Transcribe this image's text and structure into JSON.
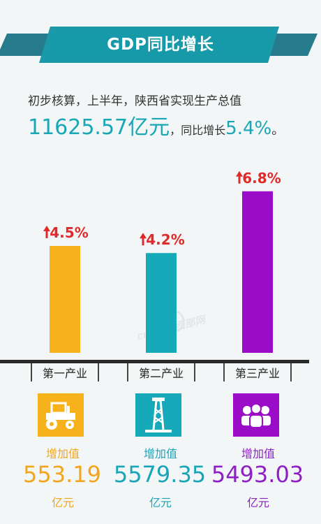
{
  "title": "GDP同比增长",
  "intro": {
    "line1": "初步核算，上半年，陕西省实现生产总值",
    "total": "11625.57亿元",
    "mid": "，同比增长",
    "growth": "5.4%",
    "end": "。"
  },
  "chart_data": {
    "type": "bar",
    "categories": [
      "第一产业",
      "第二产业",
      "第三产业"
    ],
    "values": [
      4.5,
      4.2,
      6.8
    ],
    "data_labels": [
      "4.5%",
      "4.2%",
      "6.8%"
    ],
    "ylim": [
      0,
      7.5
    ],
    "grid": false,
    "colors": [
      "#f7b11a",
      "#15a9b9",
      "#9a0cc8"
    ]
  },
  "sectors": [
    {
      "label": "增加值",
      "value": "553.19",
      "unit": "亿元",
      "icon": "tractor-icon",
      "color": "#f7b11a"
    },
    {
      "label": "增加值",
      "value": "5579.35",
      "unit": "亿元",
      "icon": "oil-derrick-icon",
      "color": "#15a9b9"
    },
    {
      "label": "增加值",
      "value": "5493.03",
      "unit": "亿元",
      "icon": "people-group-icon",
      "color": "#9a0cc8"
    }
  ],
  "watermark": "cnwest 西部网",
  "colors": {
    "banner": "#0f6f80",
    "banner_light": "#1b99a8",
    "arrow": "#e02a2a"
  }
}
